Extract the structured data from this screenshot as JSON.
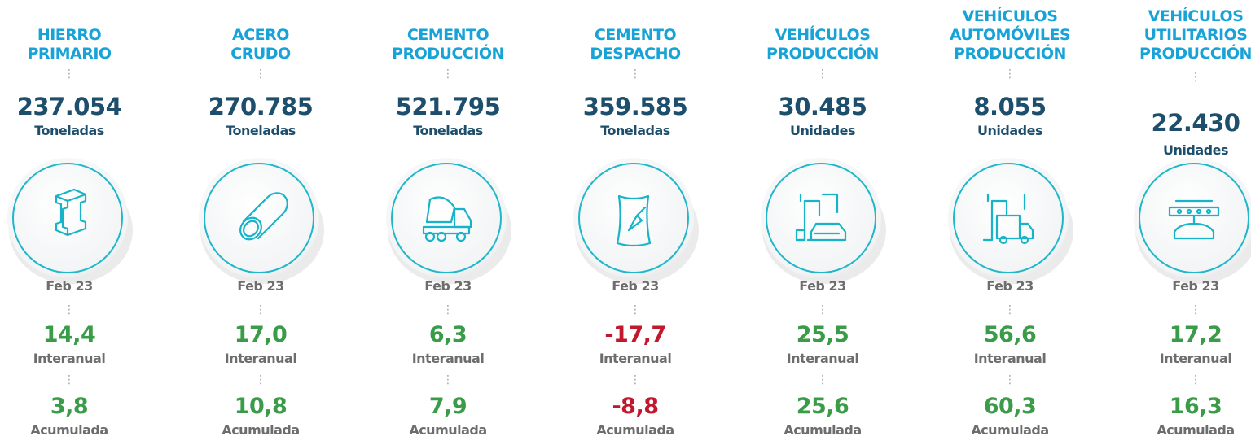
{
  "items": [
    {
      "title": [
        "HIERRO",
        "PRIMARIO"
      ],
      "value": "237.054",
      "unit": "Toneladas",
      "period": "Feb 23",
      "interanual": "14,4",
      "interanual_label": "Interanual",
      "acumulada": "3,8",
      "acumulada_label": "Acumulada",
      "interanual_color": "#3a9b48",
      "acumulada_color": "#3a9b48"
    },
    {
      "title": [
        "ACERO",
        "CRUDO"
      ],
      "value": "270.785",
      "unit": "Toneladas",
      "period": "Feb 23",
      "interanual": "17,0",
      "interanual_label": "Interanual",
      "acumulada": "10,8",
      "acumulada_label": "Acumulada",
      "interanual_color": "#3a9b48",
      "acumulada_color": "#3a9b48"
    },
    {
      "title": [
        "CEMENTO",
        "PRODUCCIÓN"
      ],
      "value": "521.795",
      "unit": "Toneladas",
      "period": "Feb 23",
      "interanual": "6,3",
      "interanual_label": "Interanual",
      "acumulada": "7,9",
      "acumulada_label": "Acumulada",
      "interanual_color": "#3a9b48",
      "acumulada_color": "#3a9b48"
    },
    {
      "title": [
        "CEMENTO",
        "DESPACHO"
      ],
      "value": "359.585",
      "unit": "Toneladas",
      "period": "Feb 23",
      "interanual": "-17,7",
      "interanual_label": "Interanual",
      "acumulada": "-8,8",
      "acumulada_label": "Acumulada",
      "interanual_color": "#c0182d",
      "acumulada_color": "#c0182d"
    },
    {
      "title": [
        "VEHÍCULOS",
        "PRODUCCIÓN"
      ],
      "value": "30.485",
      "unit": "Unidades",
      "period": "Feb 23",
      "interanual": "25,5",
      "interanual_label": "Interanual",
      "acumulada": "25,6",
      "acumulada_label": "Acumulada",
      "interanual_color": "#3a9b48",
      "acumulada_color": "#3a9b48"
    },
    {
      "title": [
        "VEHÍCULOS",
        "AUTOMÓVILES",
        "PRODUCCIÓN"
      ],
      "value": "8.055",
      "unit": "Unidades",
      "period": "Feb 23",
      "interanual": "56,6",
      "interanual_label": "Interanual",
      "acumulada": "60,3",
      "acumulada_label": "Acumulada",
      "interanual_color": "#3a9b48",
      "acumulada_color": "#3a9b48"
    },
    {
      "title": [
        "VEHÍCULOS",
        "UTILITARIOS",
        "PRODUCCIÓN"
      ],
      "value": "22.430",
      "unit": "Unidades",
      "period": "Feb 23",
      "interanual": "17,2",
      "interanual_label": "Interanual",
      "acumulada": "16,3",
      "acumulada_label": "Acumulada",
      "interanual_color": "#3a9b48",
      "acumulada_color": "#3a9b48"
    }
  ]
}
